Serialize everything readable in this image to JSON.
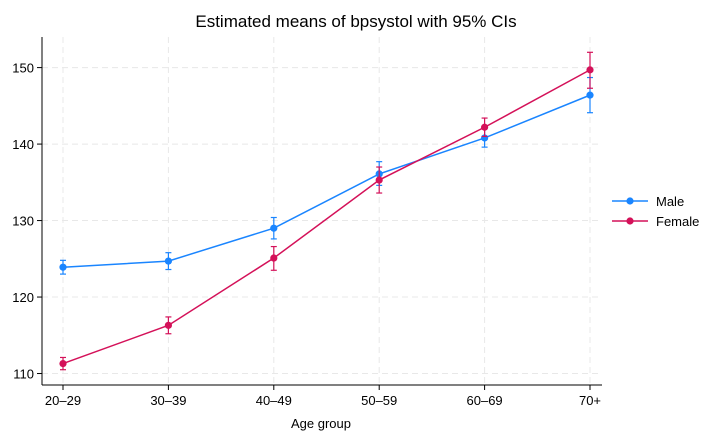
{
  "chart_data": {
    "type": "line",
    "title": "Estimated means of bpsystol with 95% CIs",
    "xlabel": "Age group",
    "ylabel": "",
    "categories": [
      "20–29",
      "30–39",
      "40–49",
      "50–59",
      "60–69",
      "70+"
    ],
    "ylim": [
      108.5,
      154
    ],
    "yticks": [
      110,
      120,
      130,
      140,
      150
    ],
    "grid": true,
    "legend_position": "right",
    "series": [
      {
        "name": "Male",
        "color": "#1a85ff",
        "values": [
          123.9,
          124.7,
          129.0,
          136.1,
          140.8,
          146.4
        ],
        "ci_low": [
          123.0,
          123.6,
          127.6,
          134.6,
          139.6,
          144.1
        ],
        "ci_high": [
          124.8,
          125.8,
          130.4,
          137.7,
          142.0,
          148.7
        ]
      },
      {
        "name": "Female",
        "color": "#d41159",
        "values": [
          111.3,
          116.3,
          125.1,
          135.3,
          142.2,
          149.7
        ],
        "ci_low": [
          110.5,
          115.2,
          123.5,
          133.6,
          141.0,
          147.3
        ],
        "ci_high": [
          112.1,
          117.4,
          126.6,
          137.0,
          143.4,
          152.0
        ]
      }
    ]
  }
}
